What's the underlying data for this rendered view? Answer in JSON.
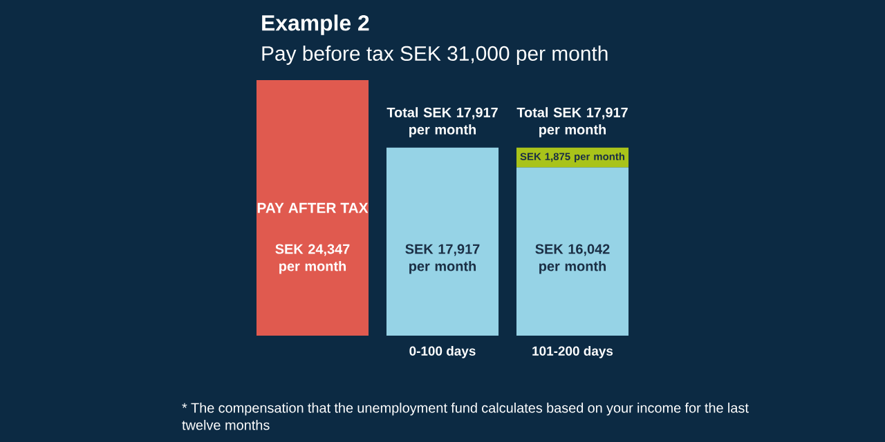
{
  "chart_data": {
    "type": "bar",
    "title": "Example 2",
    "subtitle": "Pay before tax SEK 31,000 per month",
    "categories": [
      null,
      "0-100 days",
      "101-200 days"
    ],
    "stacked": true,
    "tick_labels": "x",
    "series": [
      {
        "colors": [
          "#e05a4f",
          "#96d3e6",
          "#96d3e6"
        ],
        "values": [
          24347,
          17917,
          16042
        ],
        "value_labels": [
          "SEK 24,347 per month",
          "SEK 17,917 per month",
          "SEK 16,042 per month"
        ]
      },
      {
        "color": "#a9c31a",
        "values": [
          null,
          null,
          1875
        ],
        "value_labels": [
          null,
          null,
          "SEK 1,875 per month"
        ]
      }
    ],
    "totals": [
      null,
      "Total SEK 17,917 per month",
      "Total SEK 17,917 per month"
    ],
    "annotations": [
      "PAY AFTER TAX",
      "* The compensation that the unemployment fund calculates based on your income for the last twelve months"
    ]
  }
}
